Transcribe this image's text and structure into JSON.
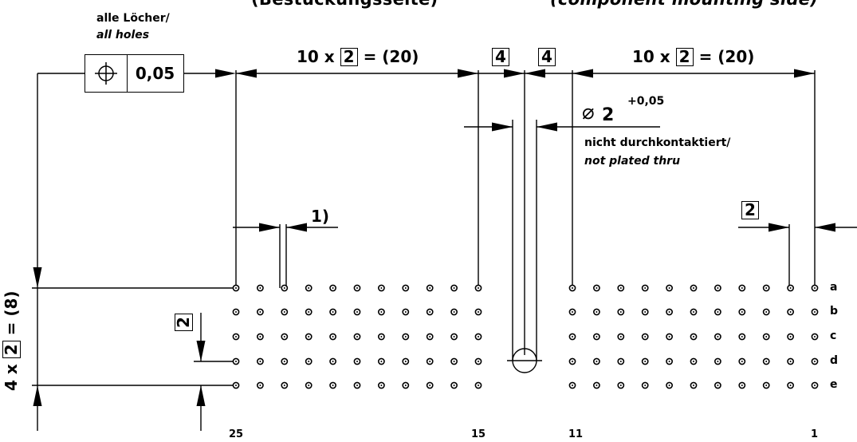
{
  "header": {
    "left": "(Bestückungsseite)",
    "right": "(component mounting side)"
  },
  "tolerance_note": {
    "german": "alle Löcher/",
    "english": "all holes",
    "symbol": "position-icon",
    "value": "0,05"
  },
  "dimensions": {
    "pitch_left_prefix": "10 x",
    "pitch_left_box": "2",
    "pitch_left_suffix": "= (20)",
    "pitch_right_prefix": "10 x",
    "pitch_right_box": "2",
    "pitch_right_suffix": "= (20)",
    "gap_left_box": "4",
    "gap_right_box": "4",
    "slot_diameter_symbol": "⌀",
    "slot_diameter": "2",
    "slot_tolerance": "+0,05",
    "slot_note_german": "nicht durchkontaktiert/",
    "slot_note_english": "not plated thru",
    "footnote_ref": "1)",
    "edge_pitch_box": "2",
    "row_pitch_box": "2",
    "vertical_prefix": "4 x",
    "vertical_box": "2",
    "vertical_suffix": "= (8)"
  },
  "rows": [
    "a",
    "b",
    "c",
    "d",
    "e"
  ],
  "pin_numbers": [
    "25",
    "15",
    "11",
    "1"
  ],
  "grid": {
    "left_columns": 11,
    "right_columns": 11,
    "rows": 5
  }
}
